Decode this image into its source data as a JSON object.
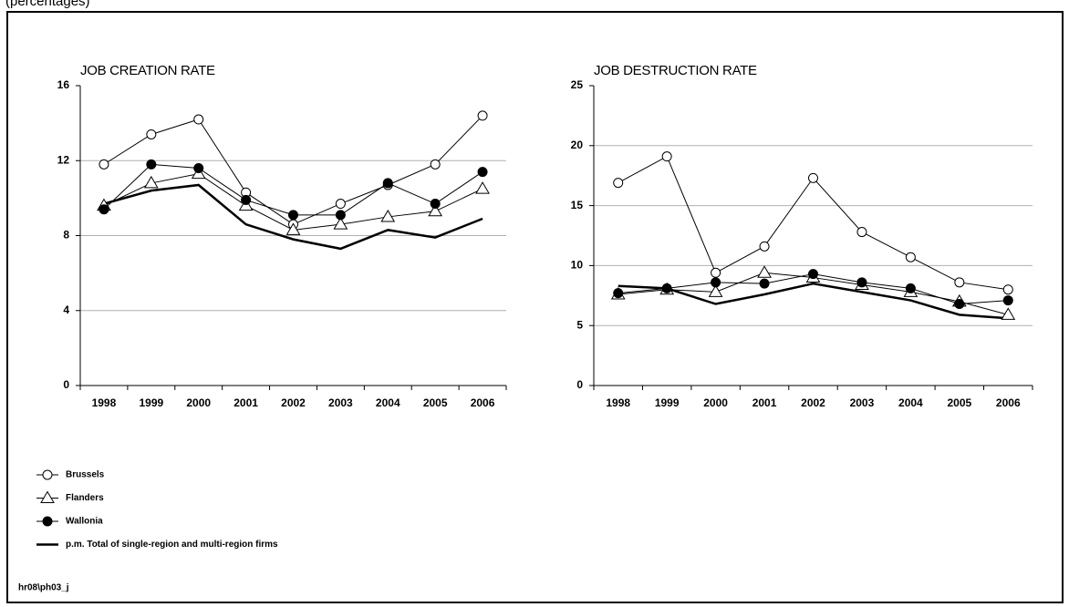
{
  "header": "(percentages)",
  "footer": "hr08\\ph03_j",
  "chart_data": [
    {
      "type": "line",
      "title": "JOB CREATION RATE",
      "categories": [
        "1998",
        "1999",
        "2000",
        "2001",
        "2002",
        "2003",
        "2004",
        "2005",
        "2006"
      ],
      "ylim": [
        0,
        16
      ],
      "yticks": [
        0,
        4,
        8,
        12,
        16
      ],
      "grid": true,
      "series": [
        {
          "name": "Brussels",
          "color": "#000000",
          "marker": "circle-open",
          "values": [
            11.8,
            13.4,
            14.2,
            10.3,
            8.6,
            9.7,
            10.7,
            11.8,
            14.4
          ]
        },
        {
          "name": "Flanders",
          "color": "#000000",
          "marker": "triangle-open",
          "values": [
            9.6,
            10.8,
            11.3,
            9.6,
            8.3,
            8.6,
            9.0,
            9.3,
            10.5
          ]
        },
        {
          "name": "Wallonia",
          "color": "#000000",
          "marker": "circle-filled",
          "values": [
            9.4,
            11.8,
            11.6,
            9.9,
            9.1,
            9.1,
            10.8,
            9.7,
            11.4
          ]
        },
        {
          "name": "p.m. Total of single-region and multi-region firms",
          "color": "#000000",
          "marker": "none",
          "values": [
            9.7,
            10.4,
            10.7,
            8.6,
            7.8,
            7.3,
            8.3,
            7.9,
            8.9
          ]
        }
      ]
    },
    {
      "type": "line",
      "title": "JOB DESTRUCTION RATE",
      "categories": [
        "1998",
        "1999",
        "2000",
        "2001",
        "2002",
        "2003",
        "2004",
        "2005",
        "2006"
      ],
      "ylim": [
        0,
        25
      ],
      "yticks": [
        0,
        5,
        10,
        15,
        20,
        25
      ],
      "grid": true,
      "series": [
        {
          "name": "Brussels",
          "color": "#000000",
          "marker": "circle-open",
          "values": [
            16.9,
            19.1,
            9.4,
            11.6,
            17.3,
            12.8,
            10.7,
            8.6,
            8.0
          ]
        },
        {
          "name": "Flanders",
          "color": "#000000",
          "marker": "triangle-open",
          "values": [
            7.6,
            8.0,
            7.8,
            9.4,
            9.0,
            8.4,
            7.8,
            7.0,
            5.9
          ]
        },
        {
          "name": "Wallonia",
          "color": "#000000",
          "marker": "circle-filled",
          "values": [
            7.7,
            8.1,
            8.6,
            8.5,
            9.3,
            8.6,
            8.1,
            6.8,
            7.1
          ]
        },
        {
          "name": "p.m. Total of single-region and multi-region firms",
          "color": "#000000",
          "marker": "none",
          "values": [
            8.3,
            8.1,
            6.8,
            7.6,
            8.5,
            7.8,
            7.1,
            5.9,
            5.6
          ]
        }
      ]
    }
  ]
}
